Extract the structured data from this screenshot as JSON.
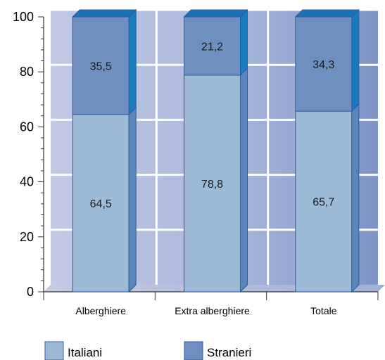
{
  "chart_data": {
    "type": "bar",
    "stacked": true,
    "percent_stacked": true,
    "three_d": true,
    "categories": [
      "Alberghiere",
      "Extra alberghiere",
      "Totale"
    ],
    "series": [
      {
        "name": "Italiani",
        "values": [
          64.5,
          78.8,
          65.7
        ]
      },
      {
        "name": "Stranieri",
        "values": [
          35.5,
          21.2,
          34.3
        ]
      }
    ],
    "data_labels": [
      [
        "64,5",
        "78,8",
        "65,7"
      ],
      [
        "35,5",
        "21,2",
        "34,3"
      ]
    ],
    "ylim": [
      0,
      100
    ],
    "yticks": [
      "0",
      "20",
      "40",
      "60",
      "80",
      "100"
    ],
    "grid": true,
    "legend_position": "bottom",
    "colors": {
      "series_front": [
        "#9dbad6",
        "#6f8fc0"
      ],
      "series_side": [
        "#5a86bd",
        "#1a7bbf"
      ],
      "series_top": [
        "#8fb3d8",
        "#1b72b8"
      ],
      "bar_outline": "#2f5aa0",
      "wall_light": "#bfc6e3",
      "wall_dark": "#7d95c6",
      "gridline": "#ffffff"
    }
  }
}
